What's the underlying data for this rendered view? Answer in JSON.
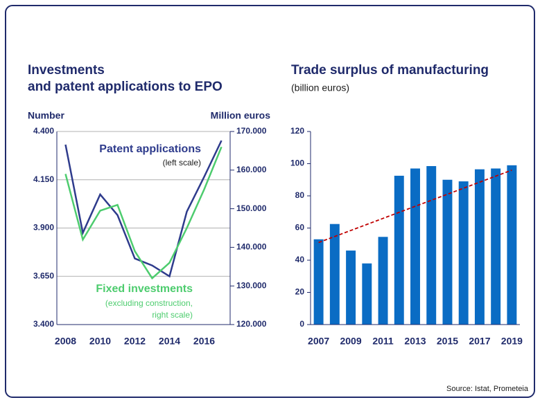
{
  "source": "Source: Istat, Prometeia",
  "chart_data": [
    {
      "type": "line",
      "title": [
        "Investments",
        "and patent applications to EPO"
      ],
      "ylabel": "Number",
      "y2label": "Million euros",
      "x": [
        2008,
        2009,
        2010,
        2011,
        2012,
        2013,
        2014,
        2015,
        2016,
        2017
      ],
      "xlim": [
        2007.5,
        2017.5
      ],
      "xticks": [
        2008,
        2010,
        2012,
        2014,
        2016
      ],
      "ylim": [
        3400,
        4400
      ],
      "yticks": [
        {
          "value": 3400,
          "label": "3.400"
        },
        {
          "value": 3650,
          "label": "3.650"
        },
        {
          "value": 3900,
          "label": "3.900"
        },
        {
          "value": 4150,
          "label": "4.150"
        },
        {
          "value": 4400,
          "label": "4.400"
        }
      ],
      "y2lim": [
        120000,
        170000
      ],
      "y2ticks": [
        {
          "value": 120000,
          "label": "120.000"
        },
        {
          "value": 130000,
          "label": "130.000"
        },
        {
          "value": 140000,
          "label": "140.000"
        },
        {
          "value": 150000,
          "label": "150.000"
        },
        {
          "value": 160000,
          "label": "160.000"
        },
        {
          "value": 170000,
          "label": "170.000"
        }
      ],
      "grid": true,
      "series": [
        {
          "name": "Patent applications",
          "note": "(left scale)",
          "color": "#2e3b8c",
          "axis": "y",
          "values": [
            4332,
            3875,
            4074,
            3967,
            3742,
            3706,
            3650,
            3985,
            4165,
            4353
          ]
        },
        {
          "name": "Fixed investments",
          "note": [
            "(excluding construction,",
            "right scale)"
          ],
          "color": "#4dcc6e",
          "axis": "y2",
          "values": [
            159000,
            142000,
            149500,
            151000,
            139000,
            132000,
            136000,
            145000,
            155000,
            166000
          ]
        }
      ]
    },
    {
      "type": "bar",
      "title": "Trade surplus of manufacturing",
      "subtitle": "(billion euros)",
      "categories": [
        "2007",
        null,
        "2009",
        null,
        "2011",
        null,
        "2013",
        null,
        "2015",
        null,
        "2017",
        null,
        "2019"
      ],
      "values": [
        53,
        62.5,
        46,
        38,
        54.5,
        92.5,
        97,
        98.5,
        90,
        89,
        96.5,
        97,
        99
      ],
      "color": "#0a6cc4",
      "ylim": [
        0,
        120
      ],
      "yticks": [
        0,
        20,
        40,
        60,
        80,
        100,
        120
      ],
      "trend": {
        "color": "#c00000",
        "values": [
          51,
          96
        ]
      }
    }
  ]
}
